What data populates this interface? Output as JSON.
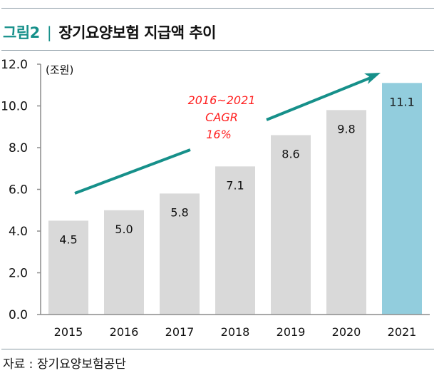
{
  "header": {
    "figure_label": "그림2",
    "separator": "|",
    "title": "장기요양보험 지급액 추이"
  },
  "source": "자료 : 장기요양보험공단",
  "colors": {
    "accent": "#16908a",
    "bar_default": "#d9d9d9",
    "bar_highlight": "#92cddd",
    "annotation": "#ff2020",
    "arrow": "#16908a"
  },
  "chart_data": {
    "type": "bar",
    "title": "장기요양보험 지급액 추이",
    "unit_label": "(조원)",
    "categories": [
      "2015",
      "2016",
      "2017",
      "2018",
      "2019",
      "2020",
      "2021"
    ],
    "values": [
      4.5,
      5.0,
      5.8,
      7.1,
      8.6,
      9.8,
      11.1
    ],
    "value_labels": [
      "4.5",
      "5.0",
      "5.8",
      "7.1",
      "8.6",
      "9.8",
      "11.1"
    ],
    "highlight_category": "2021",
    "ylim": [
      0,
      12
    ],
    "yticks": [
      0,
      2,
      4,
      6,
      8,
      10,
      12
    ],
    "ytick_labels": [
      "0.0",
      "2.0",
      "4.0",
      "6.0",
      "8.0",
      "10.0",
      "12.0"
    ],
    "grid": false,
    "legend": "none",
    "annotation": {
      "lines": [
        "2016~2021",
        "CAGR",
        "16%"
      ],
      "arrow": "upward trend arrow from 2015 to 2021"
    }
  }
}
